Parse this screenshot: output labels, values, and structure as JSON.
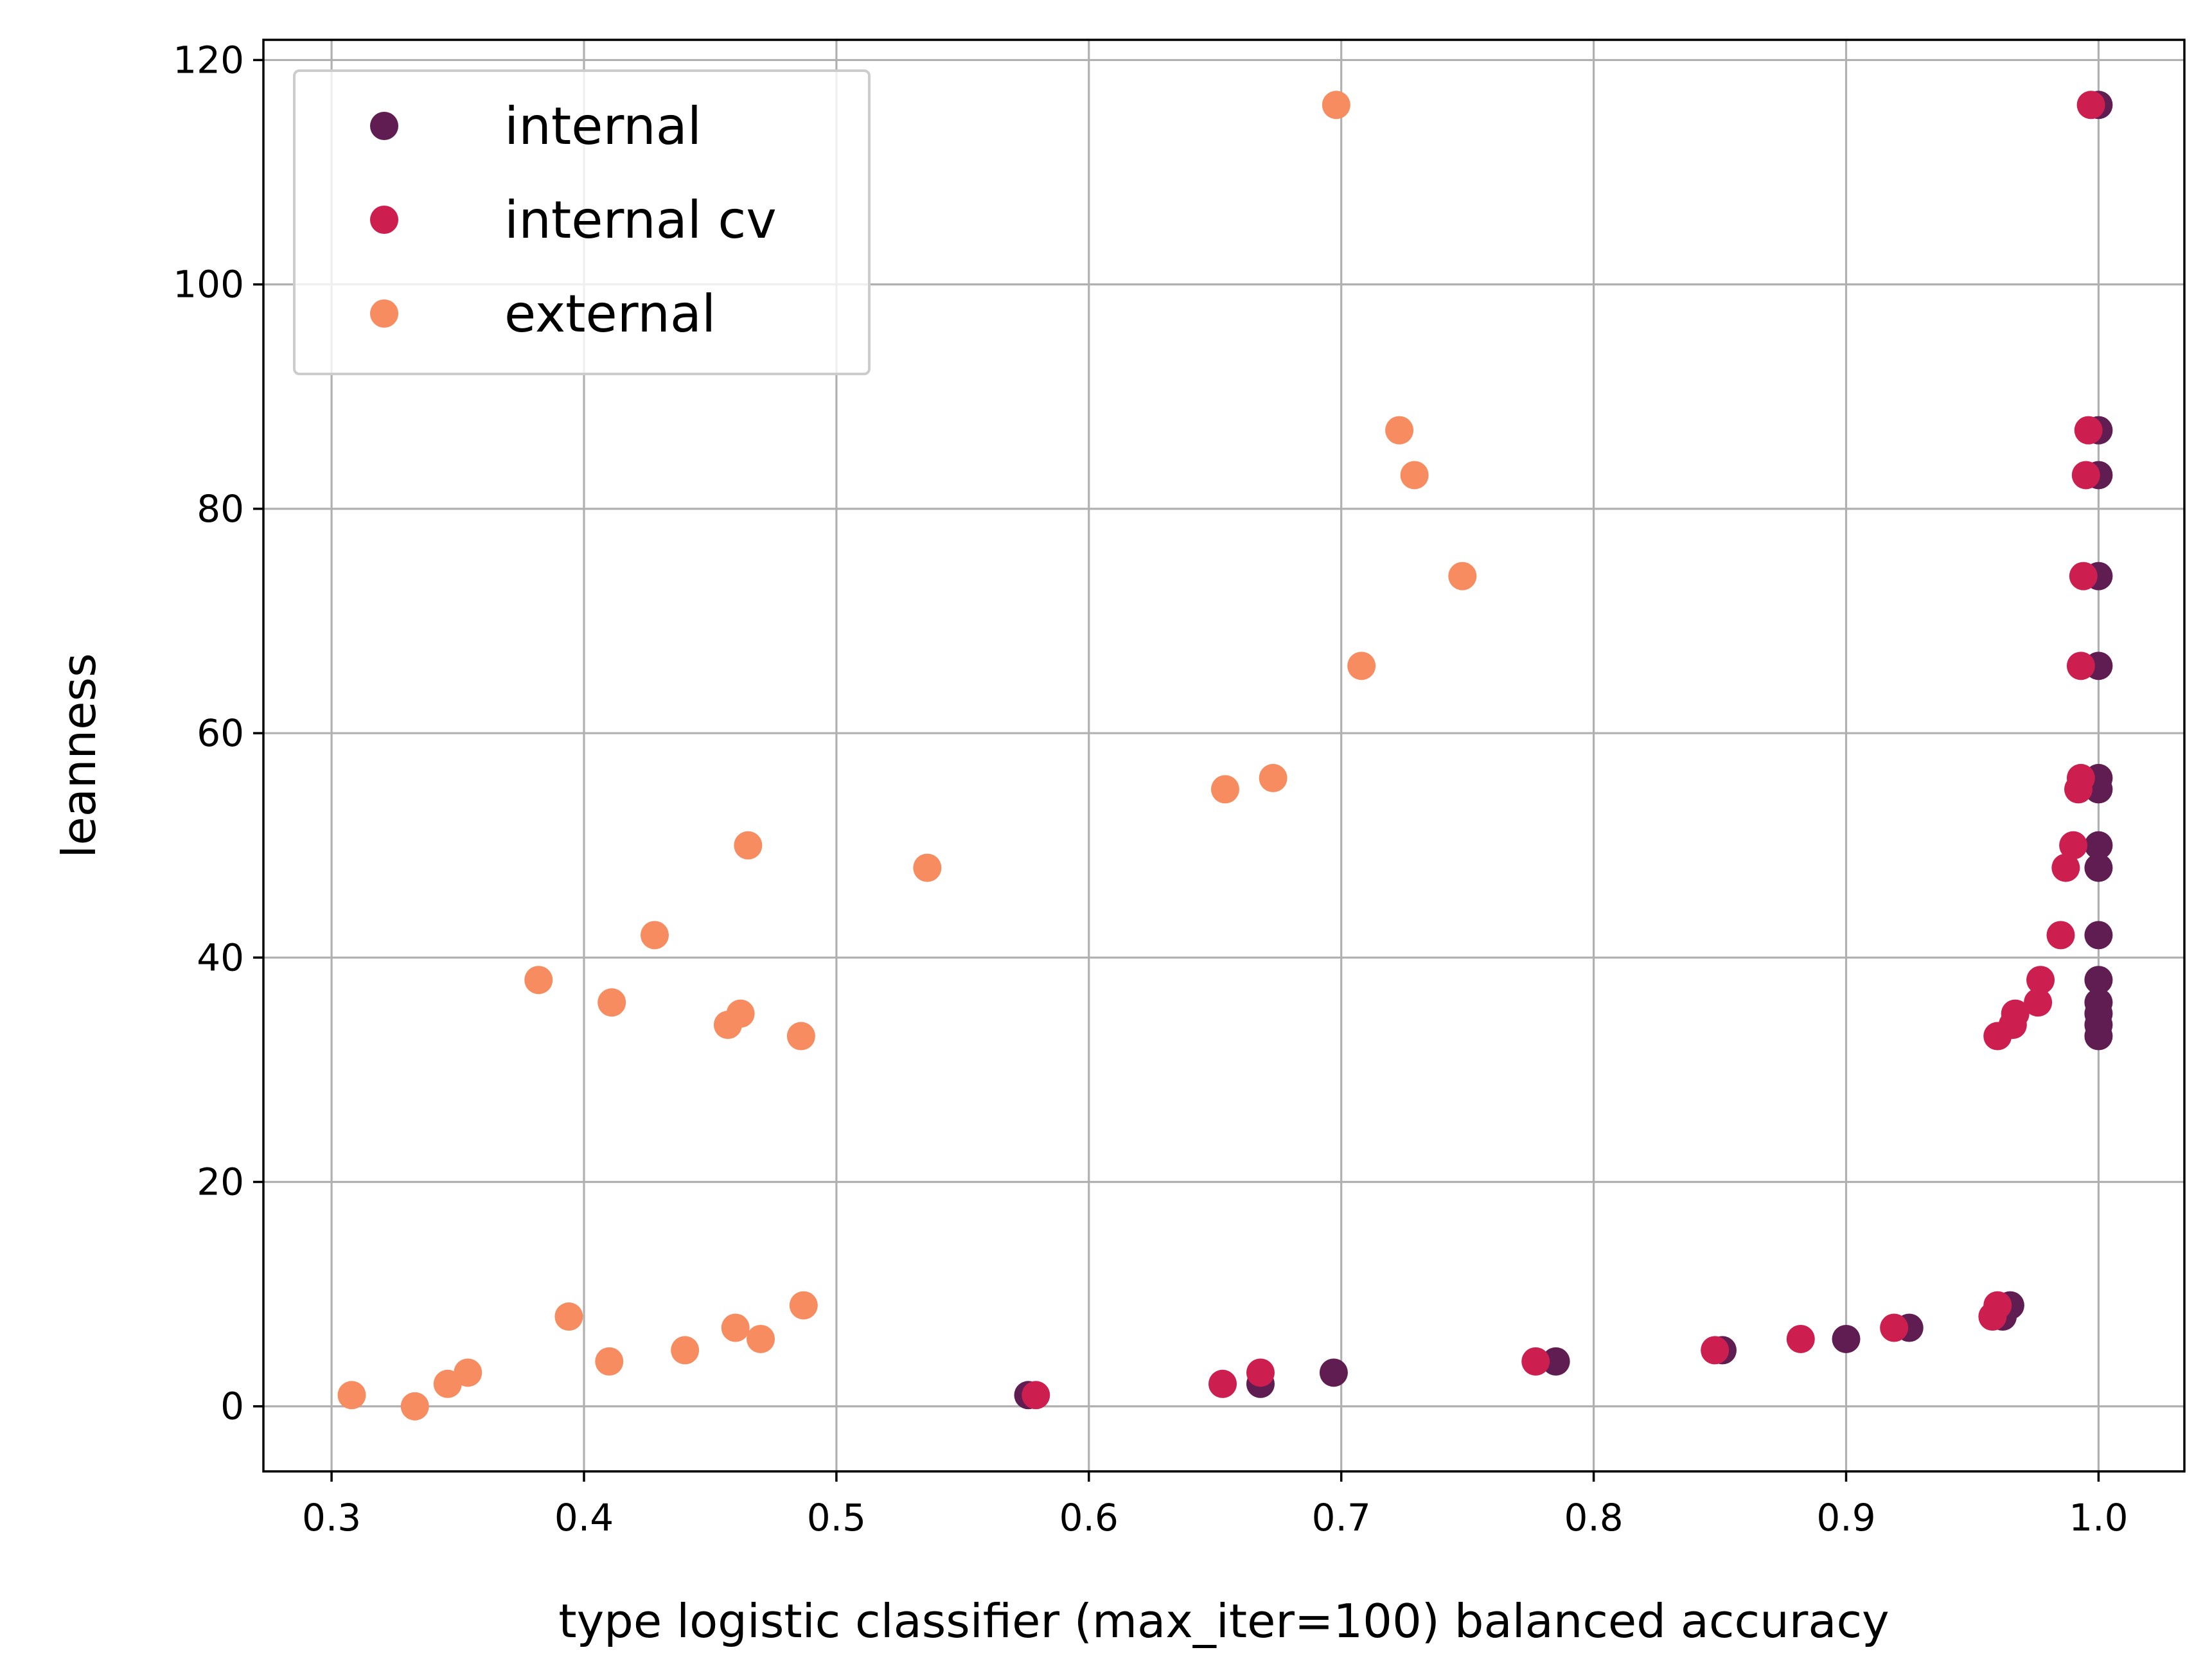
{
  "chart_data": {
    "type": "scatter",
    "xlabel": "type logistic classifier (max_iter=100) balanced accuracy",
    "ylabel": "leanness",
    "xlim": [
      0.273,
      1.034
    ],
    "ylim": [
      -5.8,
      121.8
    ],
    "xticks": [
      0.3,
      0.4,
      0.5,
      0.6,
      0.7,
      0.8,
      0.9,
      1.0
    ],
    "xtick_labels": [
      "0.3",
      "0.4",
      "0.5",
      "0.6",
      "0.7",
      "0.8",
      "0.9",
      "1.0"
    ],
    "yticks": [
      0,
      20,
      40,
      60,
      80,
      100,
      120
    ],
    "ytick_labels": [
      "0",
      "20",
      "40",
      "60",
      "80",
      "100",
      "120"
    ],
    "grid": true,
    "legend_position": "top-left",
    "series": [
      {
        "name": "internal",
        "color": "#5f1d52",
        "points": [
          [
            1.0,
            116
          ],
          [
            1.0,
            87
          ],
          [
            1.0,
            83
          ],
          [
            1.0,
            74
          ],
          [
            1.0,
            66
          ],
          [
            1.0,
            56
          ],
          [
            1.0,
            55
          ],
          [
            1.0,
            50
          ],
          [
            1.0,
            48
          ],
          [
            1.0,
            42
          ],
          [
            1.0,
            38
          ],
          [
            1.0,
            36
          ],
          [
            1.0,
            35
          ],
          [
            1.0,
            34
          ],
          [
            1.0,
            33
          ],
          [
            0.965,
            9
          ],
          [
            0.962,
            8
          ],
          [
            0.925,
            7
          ],
          [
            0.9,
            6
          ],
          [
            0.851,
            5
          ],
          [
            0.785,
            4
          ],
          [
            0.697,
            3
          ],
          [
            0.668,
            2
          ],
          [
            0.576,
            1
          ]
        ]
      },
      {
        "name": "internal cv",
        "color": "#cc1e4f",
        "points": [
          [
            0.997,
            116
          ],
          [
            0.996,
            87
          ],
          [
            0.995,
            83
          ],
          [
            0.994,
            74
          ],
          [
            0.993,
            66
          ],
          [
            0.993,
            56
          ],
          [
            0.992,
            55
          ],
          [
            0.99,
            50
          ],
          [
            0.987,
            48
          ],
          [
            0.985,
            42
          ],
          [
            0.977,
            38
          ],
          [
            0.976,
            36
          ],
          [
            0.967,
            35
          ],
          [
            0.966,
            34
          ],
          [
            0.96,
            33
          ],
          [
            0.96,
            9
          ],
          [
            0.958,
            8
          ],
          [
            0.919,
            7
          ],
          [
            0.882,
            6
          ],
          [
            0.848,
            5
          ],
          [
            0.777,
            4
          ],
          [
            0.668,
            3
          ],
          [
            0.653,
            2
          ],
          [
            0.579,
            1
          ]
        ]
      },
      {
        "name": "external",
        "color": "#f68c5f",
        "points": [
          [
            0.698,
            116
          ],
          [
            0.723,
            87
          ],
          [
            0.729,
            83
          ],
          [
            0.748,
            74
          ],
          [
            0.708,
            66
          ],
          [
            0.673,
            56
          ],
          [
            0.654,
            55
          ],
          [
            0.465,
            50
          ],
          [
            0.536,
            48
          ],
          [
            0.428,
            42
          ],
          [
            0.382,
            38
          ],
          [
            0.411,
            36
          ],
          [
            0.462,
            35
          ],
          [
            0.457,
            34
          ],
          [
            0.486,
            33
          ],
          [
            0.487,
            9
          ],
          [
            0.394,
            8
          ],
          [
            0.46,
            7
          ],
          [
            0.47,
            6
          ],
          [
            0.44,
            5
          ],
          [
            0.41,
            4
          ],
          [
            0.354,
            3
          ],
          [
            0.346,
            2
          ],
          [
            0.308,
            1
          ],
          [
            0.333,
            0
          ]
        ]
      }
    ]
  }
}
